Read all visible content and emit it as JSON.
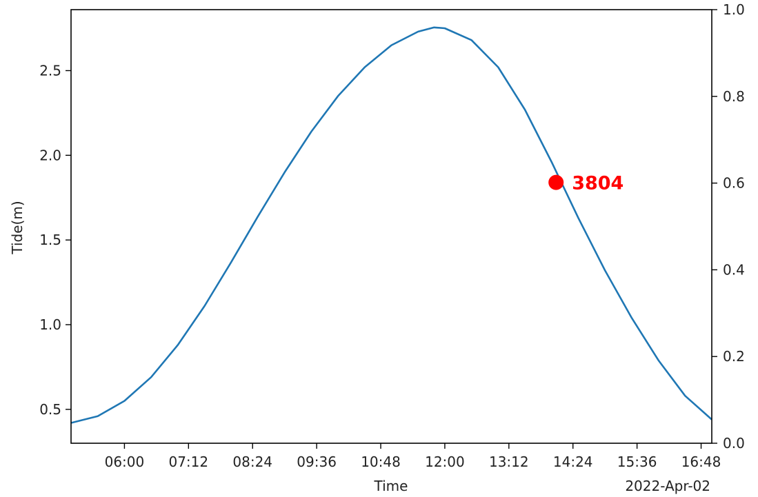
{
  "chart_data": {
    "type": "line",
    "xlabel": "Time",
    "ylabel": "Tide(m)",
    "date_label": "2022-Apr-02",
    "x_ticks": [
      "06:00",
      "07:12",
      "08:24",
      "09:36",
      "10:48",
      "12:00",
      "13:12",
      "14:24",
      "15:36",
      "16:48"
    ],
    "xlim": [
      "05:00",
      "17:00"
    ],
    "ylim": [
      0.3,
      2.86
    ],
    "y_ticks": [
      "0.5",
      "1.0",
      "1.5",
      "2.0",
      "2.5"
    ],
    "y2lim": [
      0.0,
      1.0
    ],
    "y2_ticks": [
      "0.0",
      "0.2",
      "0.4",
      "0.6",
      "0.8",
      "1.0"
    ],
    "series": [
      {
        "color": "#1f77b4",
        "points": [
          {
            "x": "05:00",
            "y": 0.42
          },
          {
            "x": "05:30",
            "y": 0.46
          },
          {
            "x": "06:00",
            "y": 0.55
          },
          {
            "x": "06:30",
            "y": 0.69
          },
          {
            "x": "07:00",
            "y": 0.88
          },
          {
            "x": "07:30",
            "y": 1.11
          },
          {
            "x": "08:00",
            "y": 1.37
          },
          {
            "x": "08:30",
            "y": 1.64
          },
          {
            "x": "09:00",
            "y": 1.9
          },
          {
            "x": "09:30",
            "y": 2.14
          },
          {
            "x": "10:00",
            "y": 2.35
          },
          {
            "x": "10:30",
            "y": 2.52
          },
          {
            "x": "11:00",
            "y": 2.65
          },
          {
            "x": "11:30",
            "y": 2.73
          },
          {
            "x": "11:48",
            "y": 2.755
          },
          {
            "x": "12:00",
            "y": 2.75
          },
          {
            "x": "12:30",
            "y": 2.68
          },
          {
            "x": "13:00",
            "y": 2.52
          },
          {
            "x": "13:30",
            "y": 2.27
          },
          {
            "x": "14:00",
            "y": 1.96
          },
          {
            "x": "14:30",
            "y": 1.63
          },
          {
            "x": "15:00",
            "y": 1.32
          },
          {
            "x": "15:30",
            "y": 1.04
          },
          {
            "x": "16:00",
            "y": 0.79
          },
          {
            "x": "16:30",
            "y": 0.58
          },
          {
            "x": "17:00",
            "y": 0.44
          }
        ]
      }
    ],
    "marker": {
      "x": "14:05",
      "y": 1.84,
      "label": "3804",
      "color": "#ff0000"
    }
  }
}
